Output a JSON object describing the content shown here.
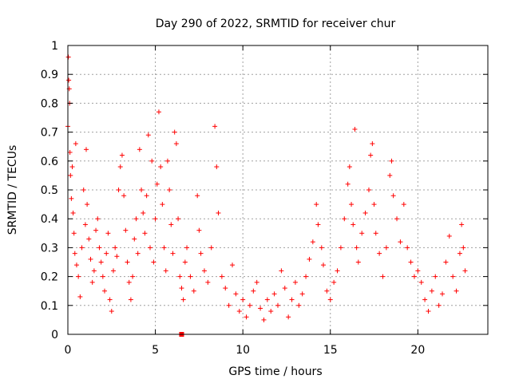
{
  "chart_data": {
    "type": "scatter",
    "title": "Day 290 of 2022, SRMTID for receiver chur",
    "xlabel": "GPS time / hours",
    "ylabel": "SRMTID / TECUs",
    "xlim": [
      0,
      24
    ],
    "ylim": [
      0,
      1
    ],
    "x_ticks": [
      0,
      5,
      10,
      15,
      20
    ],
    "x_tick_labels": [
      "0",
      "5",
      "10",
      "15",
      "20"
    ],
    "y_ticks": [
      0,
      0.1,
      0.2,
      0.3,
      0.4,
      0.5,
      0.6,
      0.7,
      0.8,
      0.9,
      1
    ],
    "y_tick_labels": [
      "0",
      "0.1",
      "0.2",
      "0.3",
      "0.4",
      "0.5",
      "0.6",
      "0.7",
      "0.8",
      "0.9",
      "1"
    ],
    "grid": true,
    "marker": "+",
    "color": "#ff0000",
    "series": [
      {
        "name": "SRMTID",
        "points": [
          [
            0.0,
            0.72
          ],
          [
            0.03,
            0.96
          ],
          [
            0.05,
            0.88
          ],
          [
            0.08,
            0.85
          ],
          [
            0.1,
            0.8
          ],
          [
            0.12,
            0.63
          ],
          [
            0.15,
            0.55
          ],
          [
            0.2,
            0.47
          ],
          [
            0.25,
            0.58
          ],
          [
            0.3,
            0.42
          ],
          [
            0.35,
            0.35
          ],
          [
            0.4,
            0.28
          ],
          [
            0.45,
            0.66
          ],
          [
            0.5,
            0.24
          ],
          [
            0.6,
            0.2
          ],
          [
            0.7,
            0.13
          ],
          [
            0.8,
            0.3
          ],
          [
            0.9,
            0.5
          ],
          [
            1.0,
            0.38
          ],
          [
            1.05,
            0.64
          ],
          [
            1.1,
            0.45
          ],
          [
            1.2,
            0.33
          ],
          [
            1.3,
            0.26
          ],
          [
            1.4,
            0.18
          ],
          [
            1.5,
            0.22
          ],
          [
            1.6,
            0.36
          ],
          [
            1.7,
            0.4
          ],
          [
            1.8,
            0.3
          ],
          [
            1.9,
            0.25
          ],
          [
            2.0,
            0.2
          ],
          [
            2.1,
            0.15
          ],
          [
            2.2,
            0.28
          ],
          [
            2.3,
            0.35
          ],
          [
            2.4,
            0.12
          ],
          [
            2.5,
            0.08
          ],
          [
            2.6,
            0.22
          ],
          [
            2.7,
            0.3
          ],
          [
            2.8,
            0.27
          ],
          [
            2.9,
            0.5
          ],
          [
            3.0,
            0.58
          ],
          [
            3.1,
            0.62
          ],
          [
            3.2,
            0.48
          ],
          [
            3.3,
            0.36
          ],
          [
            3.4,
            0.25
          ],
          [
            3.5,
            0.18
          ],
          [
            3.6,
            0.12
          ],
          [
            3.7,
            0.2
          ],
          [
            3.8,
            0.33
          ],
          [
            3.9,
            0.4
          ],
          [
            4.0,
            0.28
          ],
          [
            4.1,
            0.64
          ],
          [
            4.2,
            0.5
          ],
          [
            4.3,
            0.42
          ],
          [
            4.4,
            0.35
          ],
          [
            4.5,
            0.48
          ],
          [
            4.6,
            0.69
          ],
          [
            4.7,
            0.3
          ],
          [
            4.8,
            0.6
          ],
          [
            4.9,
            0.25
          ],
          [
            5.0,
            0.4
          ],
          [
            5.1,
            0.52
          ],
          [
            5.2,
            0.77
          ],
          [
            5.3,
            0.58
          ],
          [
            5.4,
            0.45
          ],
          [
            5.5,
            0.3
          ],
          [
            5.6,
            0.22
          ],
          [
            5.7,
            0.6
          ],
          [
            5.8,
            0.5
          ],
          [
            5.9,
            0.38
          ],
          [
            6.0,
            0.28
          ],
          [
            6.1,
            0.7
          ],
          [
            6.2,
            0.66
          ],
          [
            6.3,
            0.4
          ],
          [
            6.4,
            0.2
          ],
          [
            6.5,
            0.16
          ],
          [
            6.6,
            0.12
          ],
          [
            6.7,
            0.25
          ],
          [
            6.8,
            0.3
          ],
          [
            7.0,
            0.2
          ],
          [
            7.2,
            0.15
          ],
          [
            7.4,
            0.48
          ],
          [
            7.5,
            0.36
          ],
          [
            7.6,
            0.28
          ],
          [
            7.8,
            0.22
          ],
          [
            8.0,
            0.18
          ],
          [
            8.2,
            0.3
          ],
          [
            8.4,
            0.72
          ],
          [
            8.5,
            0.58
          ],
          [
            8.6,
            0.42
          ],
          [
            8.8,
            0.2
          ],
          [
            9.0,
            0.16
          ],
          [
            9.2,
            0.1
          ],
          [
            9.4,
            0.24
          ],
          [
            9.6,
            0.14
          ],
          [
            9.8,
            0.08
          ],
          [
            10.0,
            0.12
          ],
          [
            10.2,
            0.06
          ],
          [
            10.4,
            0.1
          ],
          [
            10.6,
            0.15
          ],
          [
            10.8,
            0.18
          ],
          [
            11.0,
            0.09
          ],
          [
            11.2,
            0.05
          ],
          [
            11.4,
            0.12
          ],
          [
            11.6,
            0.08
          ],
          [
            11.8,
            0.14
          ],
          [
            12.0,
            0.1
          ],
          [
            12.2,
            0.22
          ],
          [
            12.4,
            0.16
          ],
          [
            12.6,
            0.06
          ],
          [
            12.8,
            0.12
          ],
          [
            13.0,
            0.18
          ],
          [
            13.2,
            0.1
          ],
          [
            13.4,
            0.14
          ],
          [
            13.6,
            0.2
          ],
          [
            13.8,
            0.26
          ],
          [
            14.0,
            0.32
          ],
          [
            14.2,
            0.45
          ],
          [
            14.3,
            0.38
          ],
          [
            14.5,
            0.3
          ],
          [
            14.6,
            0.24
          ],
          [
            14.8,
            0.15
          ],
          [
            15.0,
            0.12
          ],
          [
            15.2,
            0.18
          ],
          [
            15.4,
            0.22
          ],
          [
            15.6,
            0.3
          ],
          [
            15.8,
            0.4
          ],
          [
            16.0,
            0.52
          ],
          [
            16.1,
            0.58
          ],
          [
            16.2,
            0.45
          ],
          [
            16.3,
            0.38
          ],
          [
            16.4,
            0.71
          ],
          [
            16.5,
            0.3
          ],
          [
            16.6,
            0.25
          ],
          [
            16.8,
            0.35
          ],
          [
            17.0,
            0.42
          ],
          [
            17.2,
            0.5
          ],
          [
            17.3,
            0.62
          ],
          [
            17.4,
            0.66
          ],
          [
            17.5,
            0.45
          ],
          [
            17.6,
            0.35
          ],
          [
            17.8,
            0.28
          ],
          [
            18.0,
            0.2
          ],
          [
            18.2,
            0.3
          ],
          [
            18.4,
            0.55
          ],
          [
            18.5,
            0.6
          ],
          [
            18.6,
            0.48
          ],
          [
            18.8,
            0.4
          ],
          [
            19.0,
            0.32
          ],
          [
            19.2,
            0.45
          ],
          [
            19.4,
            0.3
          ],
          [
            19.6,
            0.25
          ],
          [
            19.8,
            0.2
          ],
          [
            20.0,
            0.22
          ],
          [
            20.2,
            0.18
          ],
          [
            20.4,
            0.12
          ],
          [
            20.6,
            0.08
          ],
          [
            20.8,
            0.15
          ],
          [
            21.0,
            0.2
          ],
          [
            21.2,
            0.1
          ],
          [
            21.4,
            0.14
          ],
          [
            21.6,
            0.25
          ],
          [
            21.8,
            0.34
          ],
          [
            22.0,
            0.2
          ],
          [
            22.2,
            0.15
          ],
          [
            22.4,
            0.28
          ],
          [
            22.5,
            0.38
          ],
          [
            22.6,
            0.3
          ],
          [
            22.7,
            0.22
          ]
        ]
      }
    ],
    "gap_marker": {
      "x": 6.5,
      "y": 0
    }
  }
}
